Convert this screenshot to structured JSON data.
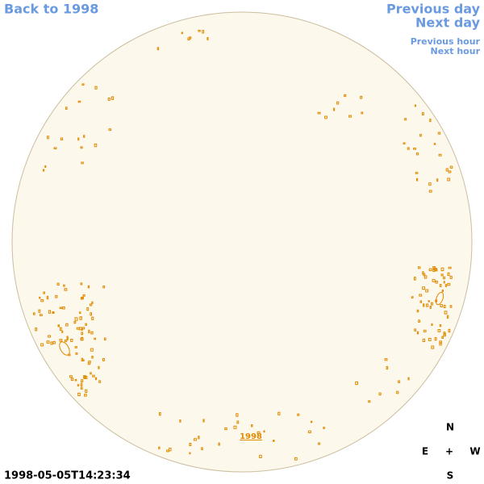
{
  "nav": {
    "back": "Back to 1998",
    "previous_day": "Previous day",
    "next_day": "Next day",
    "previous_hour": "Previous hour",
    "next_hour": "Next hour"
  },
  "timestamp": "1998-05-05T14:23:34",
  "disk_label": "1998",
  "compass": {
    "north": "N",
    "east": "E",
    "center": "+",
    "west": "W",
    "south": "S"
  }
}
